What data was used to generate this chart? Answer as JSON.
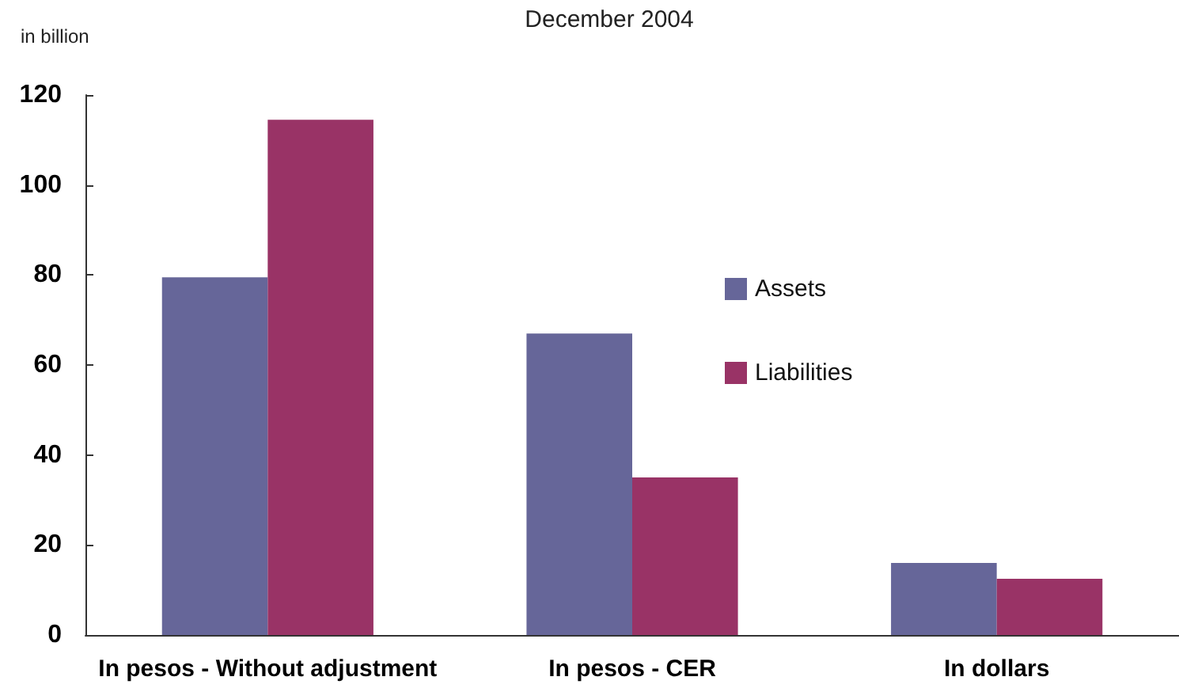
{
  "chart_data": {
    "type": "bar",
    "title": "December 2004",
    "ylabel": "in billion",
    "categories": [
      "In pesos - Without adjustment",
      "In pesos - CER",
      "In dollars"
    ],
    "series": [
      {
        "name": "Assets",
        "color": "#666699",
        "values": [
          79.5,
          67,
          16
        ]
      },
      {
        "name": "Liabilities",
        "color": "#993366",
        "values": [
          114.5,
          35,
          12.5
        ]
      }
    ],
    "ylim": [
      0,
      120
    ],
    "yticks": [
      0,
      20,
      40,
      60,
      80,
      100,
      120
    ],
    "grid": false,
    "legend": "top right"
  }
}
